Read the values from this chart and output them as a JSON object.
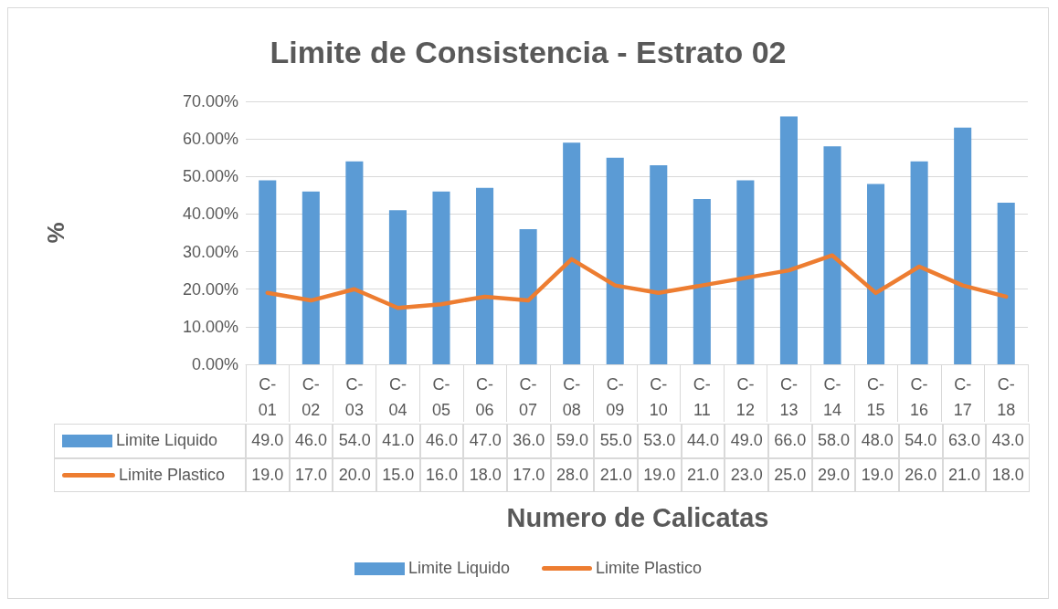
{
  "chart_data": {
    "type": "bar",
    "title": "Limite de Consistencia - Estrato 02",
    "xlabel": "Numero de Calicatas",
    "ylabel": "%",
    "categories": [
      "C-01",
      "C-02",
      "C-03",
      "C-04",
      "C-05",
      "C-06",
      "C-07",
      "C-08",
      "C-09",
      "C-10",
      "C-11",
      "C-12",
      "C-13",
      "C-14",
      "C-15",
      "C-16",
      "C-17",
      "C-18"
    ],
    "series": [
      {
        "name": "Limite Liquido",
        "color": "#5b9bd5",
        "values": [
          49,
          46,
          54,
          41,
          46,
          47,
          36,
          59,
          55,
          53,
          44,
          49,
          66,
          58,
          48,
          54,
          63,
          43
        ],
        "value_labels": [
          "49.0",
          "46.0",
          "54.0",
          "41.0",
          "46.0",
          "47.0",
          "36.0",
          "59.0",
          "55.0",
          "53.0",
          "44.0",
          "49.0",
          "66.0",
          "58.0",
          "48.0",
          "54.0",
          "63.0",
          "43.0"
        ]
      },
      {
        "name": "Limite Plastico",
        "type": "line",
        "color": "#ed7d31",
        "marker": "none",
        "values": [
          19,
          17,
          20,
          15,
          16,
          18,
          17,
          28,
          21,
          19,
          21,
          23,
          25,
          29,
          19,
          26,
          21,
          18
        ],
        "value_labels": [
          "19.0",
          "17.0",
          "20.0",
          "15.0",
          "16.0",
          "18.0",
          "17.0",
          "28.0",
          "21.0",
          "19.0",
          "21.0",
          "23.0",
          "25.0",
          "29.0",
          "19.0",
          "26.0",
          "21.0",
          "18.0"
        ]
      }
    ],
    "ylim": [
      0,
      70
    ],
    "yticks": [
      {
        "value": 0,
        "label": "0.00%"
      },
      {
        "value": 10,
        "label": "10.00%"
      },
      {
        "value": 20,
        "label": "20.00%"
      },
      {
        "value": 30,
        "label": "30.00%"
      },
      {
        "value": 40,
        "label": "40.00%"
      },
      {
        "value": 50,
        "label": "50.00%"
      },
      {
        "value": 60,
        "label": "60.00%"
      },
      {
        "value": 70,
        "label": "70.00%"
      }
    ],
    "grid": "y",
    "legend": "bottom"
  }
}
